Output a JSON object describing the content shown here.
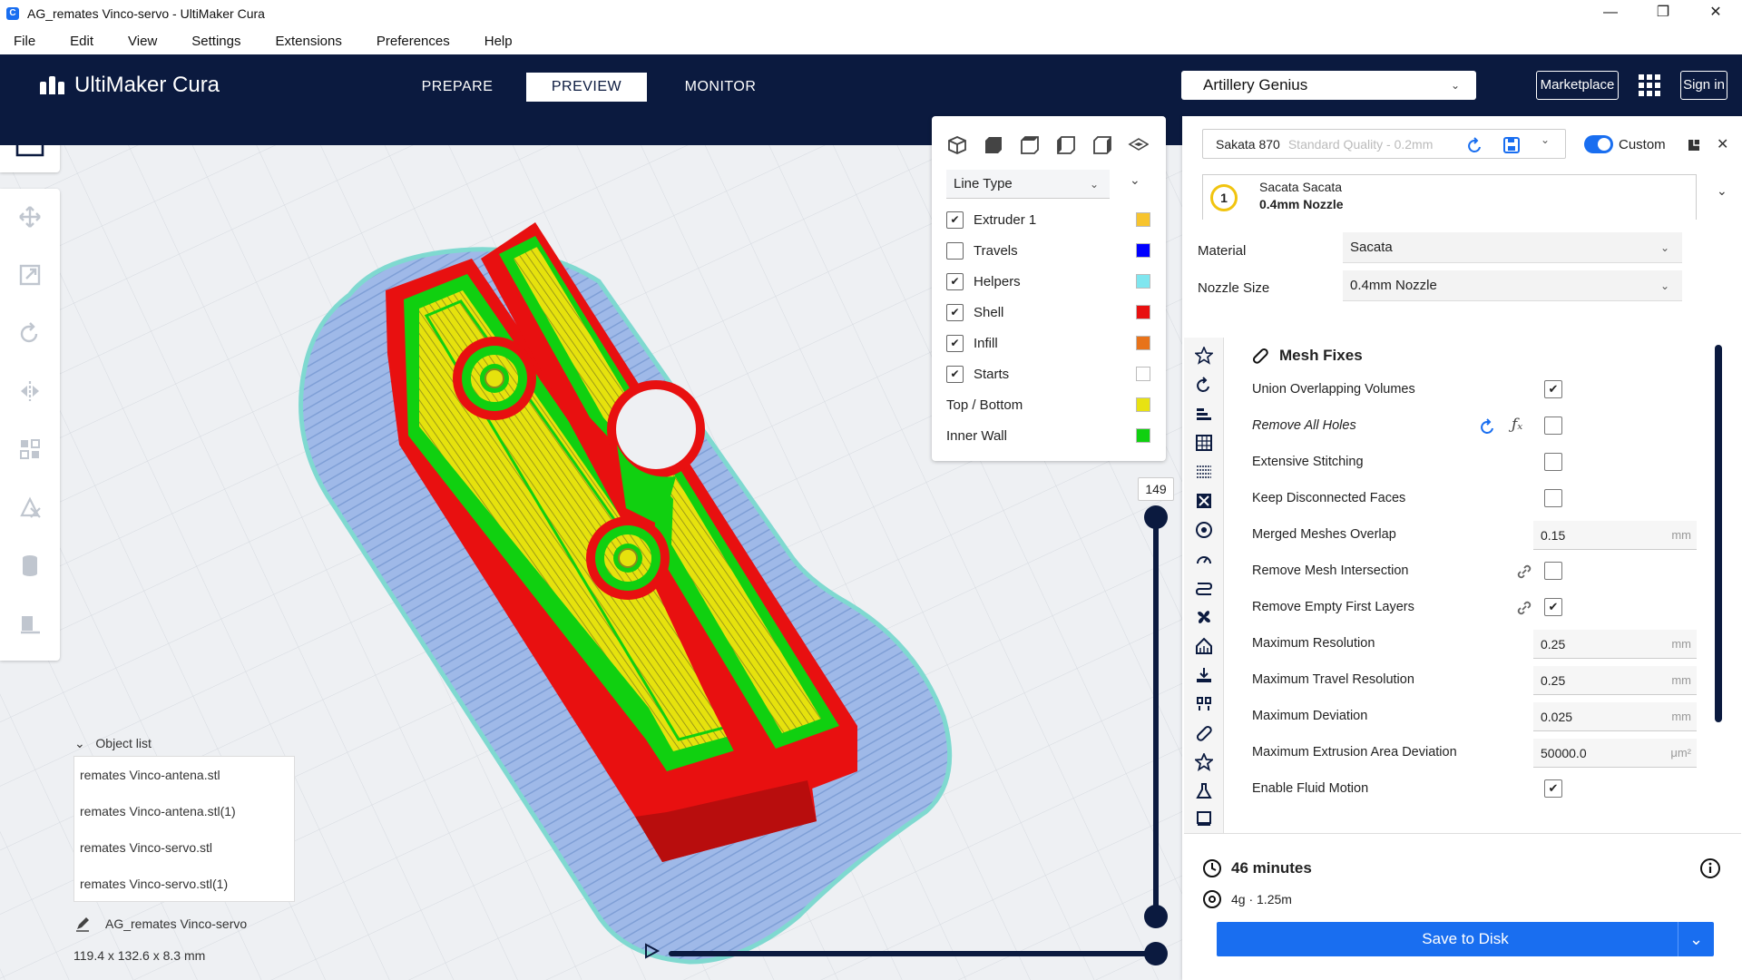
{
  "window": {
    "title": "AG_remates Vinco-servo - UltiMaker Cura",
    "app_icon": "C"
  },
  "menu": [
    "File",
    "Edit",
    "View",
    "Settings",
    "Extensions",
    "Preferences",
    "Help"
  ],
  "header": {
    "logo_text": "UltiMaker Cura",
    "tabs": [
      "PREPARE",
      "PREVIEW",
      "MONITOR"
    ],
    "active_tab": "PREVIEW",
    "printer": "Artillery Genius",
    "marketplace": "Marketplace",
    "signin": "Sign in"
  },
  "view_panel": {
    "color_scheme": "Line Type",
    "legend": [
      {
        "label": "Extruder 1",
        "checked": true,
        "checkbox": true,
        "color": "#f7c42e"
      },
      {
        "label": "Travels",
        "checked": false,
        "checkbox": true,
        "color": "#0000ff"
      },
      {
        "label": "Helpers",
        "checked": true,
        "checkbox": true,
        "color": "#7fe6ef"
      },
      {
        "label": "Shell",
        "checked": true,
        "checkbox": true,
        "color": "#e81010"
      },
      {
        "label": "Infill",
        "checked": true,
        "checkbox": true,
        "color": "#e8731a"
      },
      {
        "label": "Starts",
        "checked": true,
        "checkbox": true,
        "color": "#ffffff"
      },
      {
        "label": "Top / Bottom",
        "checked": false,
        "checkbox": false,
        "color": "#e8e212"
      },
      {
        "label": "Inner Wall",
        "checked": false,
        "checkbox": false,
        "color": "#10d010"
      }
    ]
  },
  "layer_slider": {
    "current_layer": "149"
  },
  "object_list": {
    "title": "Object list",
    "items": [
      "remates Vinco-antena.stl",
      "remates Vinco-antena.stl(1)",
      "remates Vinco-servo.stl",
      "remates Vinco-servo.stl(1)"
    ],
    "job_name": "AG_remates Vinco-servo",
    "dimensions": "119.4 x 132.6 x 8.3 mm"
  },
  "settings_panel": {
    "profile": "Sakata 870",
    "profile_sub": "Standard Quality - 0.2mm",
    "custom_label": "Custom",
    "extruder": {
      "number": "1",
      "material": "Sacata Sacata",
      "nozzle": "0.4mm Nozzle"
    },
    "material_label": "Material",
    "material_value": "Sacata",
    "nozzle_label": "Nozzle Size",
    "nozzle_value": "0.4mm Nozzle",
    "section_title": "Mesh Fixes",
    "settings": [
      {
        "label": "Union Overlapping Volumes",
        "type": "check",
        "checked": true
      },
      {
        "label": "Remove All Holes",
        "type": "check",
        "checked": false,
        "italic": true
      },
      {
        "label": "Extensive Stitching",
        "type": "check",
        "checked": false
      },
      {
        "label": "Keep Disconnected Faces",
        "type": "check",
        "checked": false
      },
      {
        "label": "Merged Meshes Overlap",
        "type": "num",
        "value": "0.15",
        "unit": "mm"
      },
      {
        "label": "Remove Mesh Intersection",
        "type": "check",
        "checked": false,
        "link": true
      },
      {
        "label": "Remove Empty First Layers",
        "type": "check",
        "checked": true,
        "link": true
      },
      {
        "label": "Maximum Resolution",
        "type": "num",
        "value": "0.25",
        "unit": "mm"
      },
      {
        "label": "Maximum Travel Resolution",
        "type": "num",
        "value": "0.25",
        "unit": "mm"
      },
      {
        "label": "Maximum Deviation",
        "type": "num",
        "value": "0.025",
        "unit": "mm"
      },
      {
        "label": "Maximum Extrusion Area Deviation",
        "type": "num",
        "value": "50000.0",
        "unit": "μm²"
      },
      {
        "label": "Enable Fluid Motion",
        "type": "check",
        "checked": true
      }
    ]
  },
  "print_summary": {
    "time": "46 minutes",
    "material_use": "4g · 1.25m",
    "save_button": "Save to Disk"
  },
  "colors": {
    "header_bg": "#0b1a3f",
    "accent": "#196ef0",
    "shell": "#e81010",
    "inner_wall": "#10d010",
    "top_bottom": "#e8e212",
    "helpers": "#9bb7e6"
  }
}
